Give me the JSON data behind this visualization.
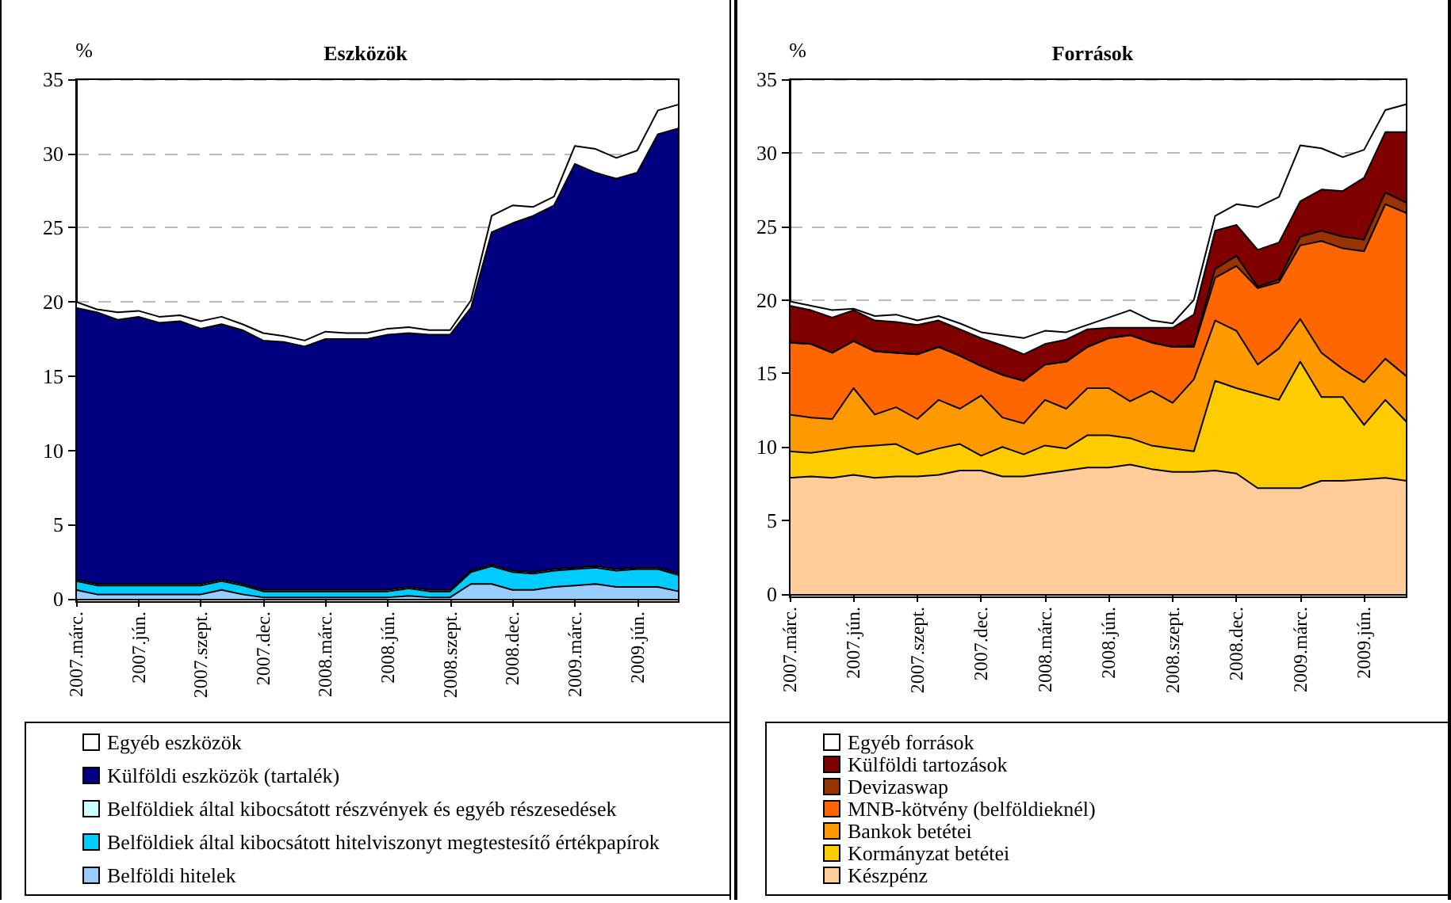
{
  "chart_data": [
    {
      "type": "area",
      "title": "Eszközök",
      "ylabel": "%",
      "stacked": true,
      "grid": "y",
      "legend": "bottom",
      "ylim": [
        0,
        35
      ],
      "yticks": [
        0,
        5,
        10,
        15,
        20,
        25,
        30,
        35
      ],
      "categories": [
        "2007.márc.",
        null,
        null,
        "2007.jún.",
        null,
        null,
        "2007.szept.",
        null,
        null,
        "2007.dec.",
        null,
        null,
        "2008.márc.",
        null,
        null,
        "2008.jún.",
        null,
        null,
        "2008.szept.",
        null,
        null,
        "2008.dec.",
        null,
        null,
        "2009.márc.",
        null,
        null,
        "2009.jún.",
        null,
        null
      ],
      "series": [
        {
          "name": "Belföldi hitelek",
          "color": "#99ccff",
          "values": [
            0.6,
            0.3,
            0.3,
            0.3,
            0.3,
            0.3,
            0.3,
            0.6,
            0.3,
            0.1,
            0.1,
            0.1,
            0.1,
            0.1,
            0.1,
            0.1,
            0.2,
            0.1,
            0.1,
            1.0,
            1.0,
            0.6,
            0.6,
            0.8,
            0.9,
            1.0,
            0.8,
            0.8,
            0.8,
            0.5
          ]
        },
        {
          "name": "Belföldiek által kibocsátott hitelviszonyt megtestesítő értékpapírok",
          "color": "#00ccff",
          "values": [
            0.6,
            0.6,
            0.6,
            0.6,
            0.6,
            0.6,
            0.6,
            0.6,
            0.6,
            0.4,
            0.4,
            0.4,
            0.4,
            0.4,
            0.4,
            0.4,
            0.5,
            0.4,
            0.4,
            0.8,
            1.2,
            1.2,
            1.1,
            1.1,
            1.1,
            1.1,
            1.1,
            1.2,
            1.2,
            1.1
          ]
        },
        {
          "name": "Belföldiek által kibocsátott részvények és egyéb részesedések",
          "color": "#ccffff",
          "values": [
            0.1,
            0.1,
            0.1,
            0.1,
            0.1,
            0.1,
            0.1,
            0.1,
            0.1,
            0.1,
            0.1,
            0.1,
            0.1,
            0.1,
            0.1,
            0.1,
            0.1,
            0.1,
            0.1,
            0.1,
            0.1,
            0.1,
            0.1,
            0.1,
            0.1,
            0.1,
            0.1,
            0.1,
            0.1,
            0.1
          ]
        },
        {
          "name": "Külföldi eszközök (tartalék)",
          "color": "#000080",
          "values": [
            18.3,
            18.3,
            17.8,
            18.0,
            17.6,
            17.7,
            17.2,
            17.2,
            17.1,
            16.8,
            16.7,
            16.4,
            16.9,
            16.9,
            16.9,
            17.2,
            17.1,
            17.2,
            17.2,
            17.7,
            22.4,
            23.4,
            24.0,
            24.5,
            27.2,
            26.5,
            26.3,
            26.6,
            29.2,
            30.0
          ]
        },
        {
          "name": "Egyéb eszközök",
          "color": "#ffffff",
          "values": [
            0.4,
            0.2,
            0.5,
            0.4,
            0.4,
            0.4,
            0.5,
            0.5,
            0.4,
            0.5,
            0.4,
            0.4,
            0.5,
            0.4,
            0.4,
            0.4,
            0.4,
            0.3,
            0.3,
            0.5,
            1.1,
            1.2,
            0.6,
            0.6,
            1.2,
            1.6,
            1.4,
            1.5,
            1.6,
            1.6
          ]
        }
      ]
    },
    {
      "type": "area",
      "title": "Források",
      "ylabel": "%",
      "stacked": true,
      "grid": "y",
      "legend": "bottom",
      "ylim": [
        0,
        35
      ],
      "yticks": [
        0,
        5,
        10,
        15,
        20,
        25,
        30,
        35
      ],
      "categories": [
        "2007.márc.",
        null,
        null,
        "2007.jún.",
        null,
        null,
        "2007.szept.",
        null,
        null,
        "2007.dec.",
        null,
        null,
        "2008.márc.",
        null,
        null,
        "2008.jún.",
        null,
        null,
        "2008.szept.",
        null,
        null,
        "2008.dec.",
        null,
        null,
        "2009.márc.",
        null,
        null,
        "2009.jún.",
        null,
        null
      ],
      "series": [
        {
          "name": "Készpénz",
          "color": "#ffcc99",
          "values": [
            7.9,
            8.0,
            7.9,
            8.1,
            7.9,
            8.0,
            8.0,
            8.1,
            8.4,
            8.4,
            8.0,
            8.0,
            8.2,
            8.4,
            8.6,
            8.6,
            8.8,
            8.5,
            8.3,
            8.3,
            8.4,
            8.2,
            7.2,
            7.2,
            7.2,
            7.7,
            7.7,
            7.8,
            7.9,
            7.7
          ]
        },
        {
          "name": "Kormányzat betétei",
          "color": "#ffcc00",
          "values": [
            1.8,
            1.6,
            1.9,
            1.9,
            2.2,
            2.2,
            1.5,
            1.8,
            1.8,
            1.0,
            2.0,
            1.5,
            1.9,
            1.5,
            2.2,
            2.2,
            1.8,
            1.6,
            1.6,
            1.4,
            6.1,
            5.8,
            6.4,
            6.0,
            8.6,
            5.7,
            5.7,
            3.7,
            5.3,
            4.0
          ]
        },
        {
          "name": "Bankok betétei",
          "color": "#ff9900",
          "values": [
            2.5,
            2.4,
            2.1,
            4.0,
            2.1,
            2.5,
            2.4,
            3.3,
            2.4,
            4.1,
            2.0,
            2.1,
            3.1,
            2.7,
            3.2,
            3.2,
            2.5,
            3.7,
            3.1,
            4.9,
            4.1,
            3.9,
            2.0,
            3.5,
            2.9,
            3.0,
            1.9,
            2.9,
            2.8,
            3.1
          ]
        },
        {
          "name": "MNB-kötvény (belföldieknél)",
          "color": "#ff6600",
          "values": [
            4.9,
            5.0,
            4.5,
            3.2,
            4.3,
            3.7,
            4.4,
            3.6,
            3.6,
            2.0,
            2.9,
            2.9,
            2.4,
            3.2,
            2.8,
            3.4,
            4.5,
            3.3,
            3.8,
            2.2,
            2.9,
            4.4,
            5.2,
            4.5,
            5.0,
            7.6,
            8.2,
            8.9,
            10.5,
            11.1
          ]
        },
        {
          "name": "Devizaswap",
          "color": "#993300",
          "values": [
            0,
            0,
            0,
            0,
            0,
            0,
            0,
            0,
            0,
            0,
            0,
            0,
            0,
            0,
            0,
            0,
            0,
            0,
            0,
            0.1,
            0.6,
            0.7,
            0.1,
            0.2,
            0.6,
            0.7,
            0.8,
            0.8,
            0.8,
            0.7
          ]
        },
        {
          "name": "Külföldi tartozások",
          "color": "#800000",
          "values": [
            2.5,
            2.3,
            2.4,
            2.1,
            2.1,
            2.1,
            2.0,
            1.8,
            1.8,
            1.9,
            2.0,
            1.8,
            1.4,
            1.5,
            1.2,
            0.7,
            0.5,
            1.0,
            1.3,
            2.1,
            2.6,
            2.1,
            2.5,
            2.5,
            2.4,
            2.8,
            3.1,
            4.2,
            4.1,
            4.8
          ]
        },
        {
          "name": "Egyéb források",
          "color": "#ffffff",
          "values": [
            0.3,
            0.3,
            0.5,
            0.1,
            0.3,
            0.5,
            0.3,
            0.3,
            0.4,
            0.4,
            0.7,
            1.1,
            0.9,
            0.5,
            0.3,
            0.7,
            1.2,
            0.5,
            0.3,
            1.0,
            1.0,
            1.4,
            2.9,
            3.1,
            3.8,
            2.8,
            2.3,
            1.9,
            1.5,
            1.9
          ]
        }
      ]
    }
  ]
}
